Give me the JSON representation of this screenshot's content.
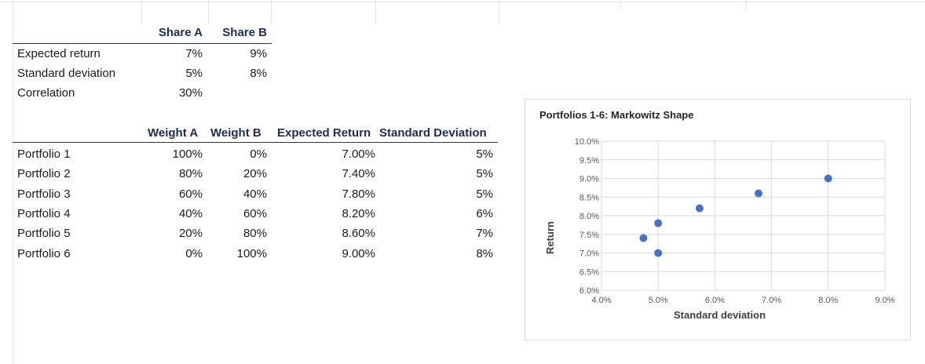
{
  "top_table": {
    "headers": [
      "Share A",
      "Share B"
    ],
    "rows": [
      {
        "label": "Expected return",
        "a": "7%",
        "b": "9%"
      },
      {
        "label": "Standard deviation",
        "a": "5%",
        "b": "8%"
      },
      {
        "label": "Correlation",
        "a": "30%",
        "b": ""
      }
    ]
  },
  "portfolio_table": {
    "headers": [
      "Weight A",
      "Weight B",
      "Expected Return",
      "Standard Deviation"
    ],
    "rows": [
      {
        "label": "Portfolio 1",
        "wa": "100%",
        "wb": "0%",
        "er": "7.00%",
        "sd": "5%"
      },
      {
        "label": "Portfolio 2",
        "wa": "80%",
        "wb": "20%",
        "er": "7.40%",
        "sd": "5%"
      },
      {
        "label": "Portfolio 3",
        "wa": "60%",
        "wb": "40%",
        "er": "7.80%",
        "sd": "5%"
      },
      {
        "label": "Portfolio 4",
        "wa": "40%",
        "wb": "60%",
        "er": "8.20%",
        "sd": "6%"
      },
      {
        "label": "Portfolio 5",
        "wa": "20%",
        "wb": "80%",
        "er": "8.60%",
        "sd": "7%"
      },
      {
        "label": "Portfolio 6",
        "wa": "0%",
        "wb": "100%",
        "er": "9.00%",
        "sd": "8%"
      }
    ]
  },
  "chart_data": {
    "type": "scatter",
    "title": "Portfolios 1-6: Markowitz Shape",
    "xlabel": "Standard deviation",
    "ylabel": "Return",
    "xlim": [
      0.04,
      0.09
    ],
    "ylim": [
      0.06,
      0.1
    ],
    "xticks": [
      "4.0%",
      "5.0%",
      "6.0%",
      "7.0%",
      "8.0%",
      "9.0%"
    ],
    "yticks": [
      "6.0%",
      "6.5%",
      "7.0%",
      "7.5%",
      "8.0%",
      "8.5%",
      "9.0%",
      "9.5%",
      "10.0%"
    ],
    "grid": true,
    "point_color": "#4472c4",
    "points": [
      {
        "x": 0.05,
        "y": 0.07
      },
      {
        "x": 0.0474,
        "y": 0.074
      },
      {
        "x": 0.05,
        "y": 0.078
      },
      {
        "x": 0.0573,
        "y": 0.082
      },
      {
        "x": 0.0677,
        "y": 0.086
      },
      {
        "x": 0.08,
        "y": 0.09
      }
    ]
  }
}
